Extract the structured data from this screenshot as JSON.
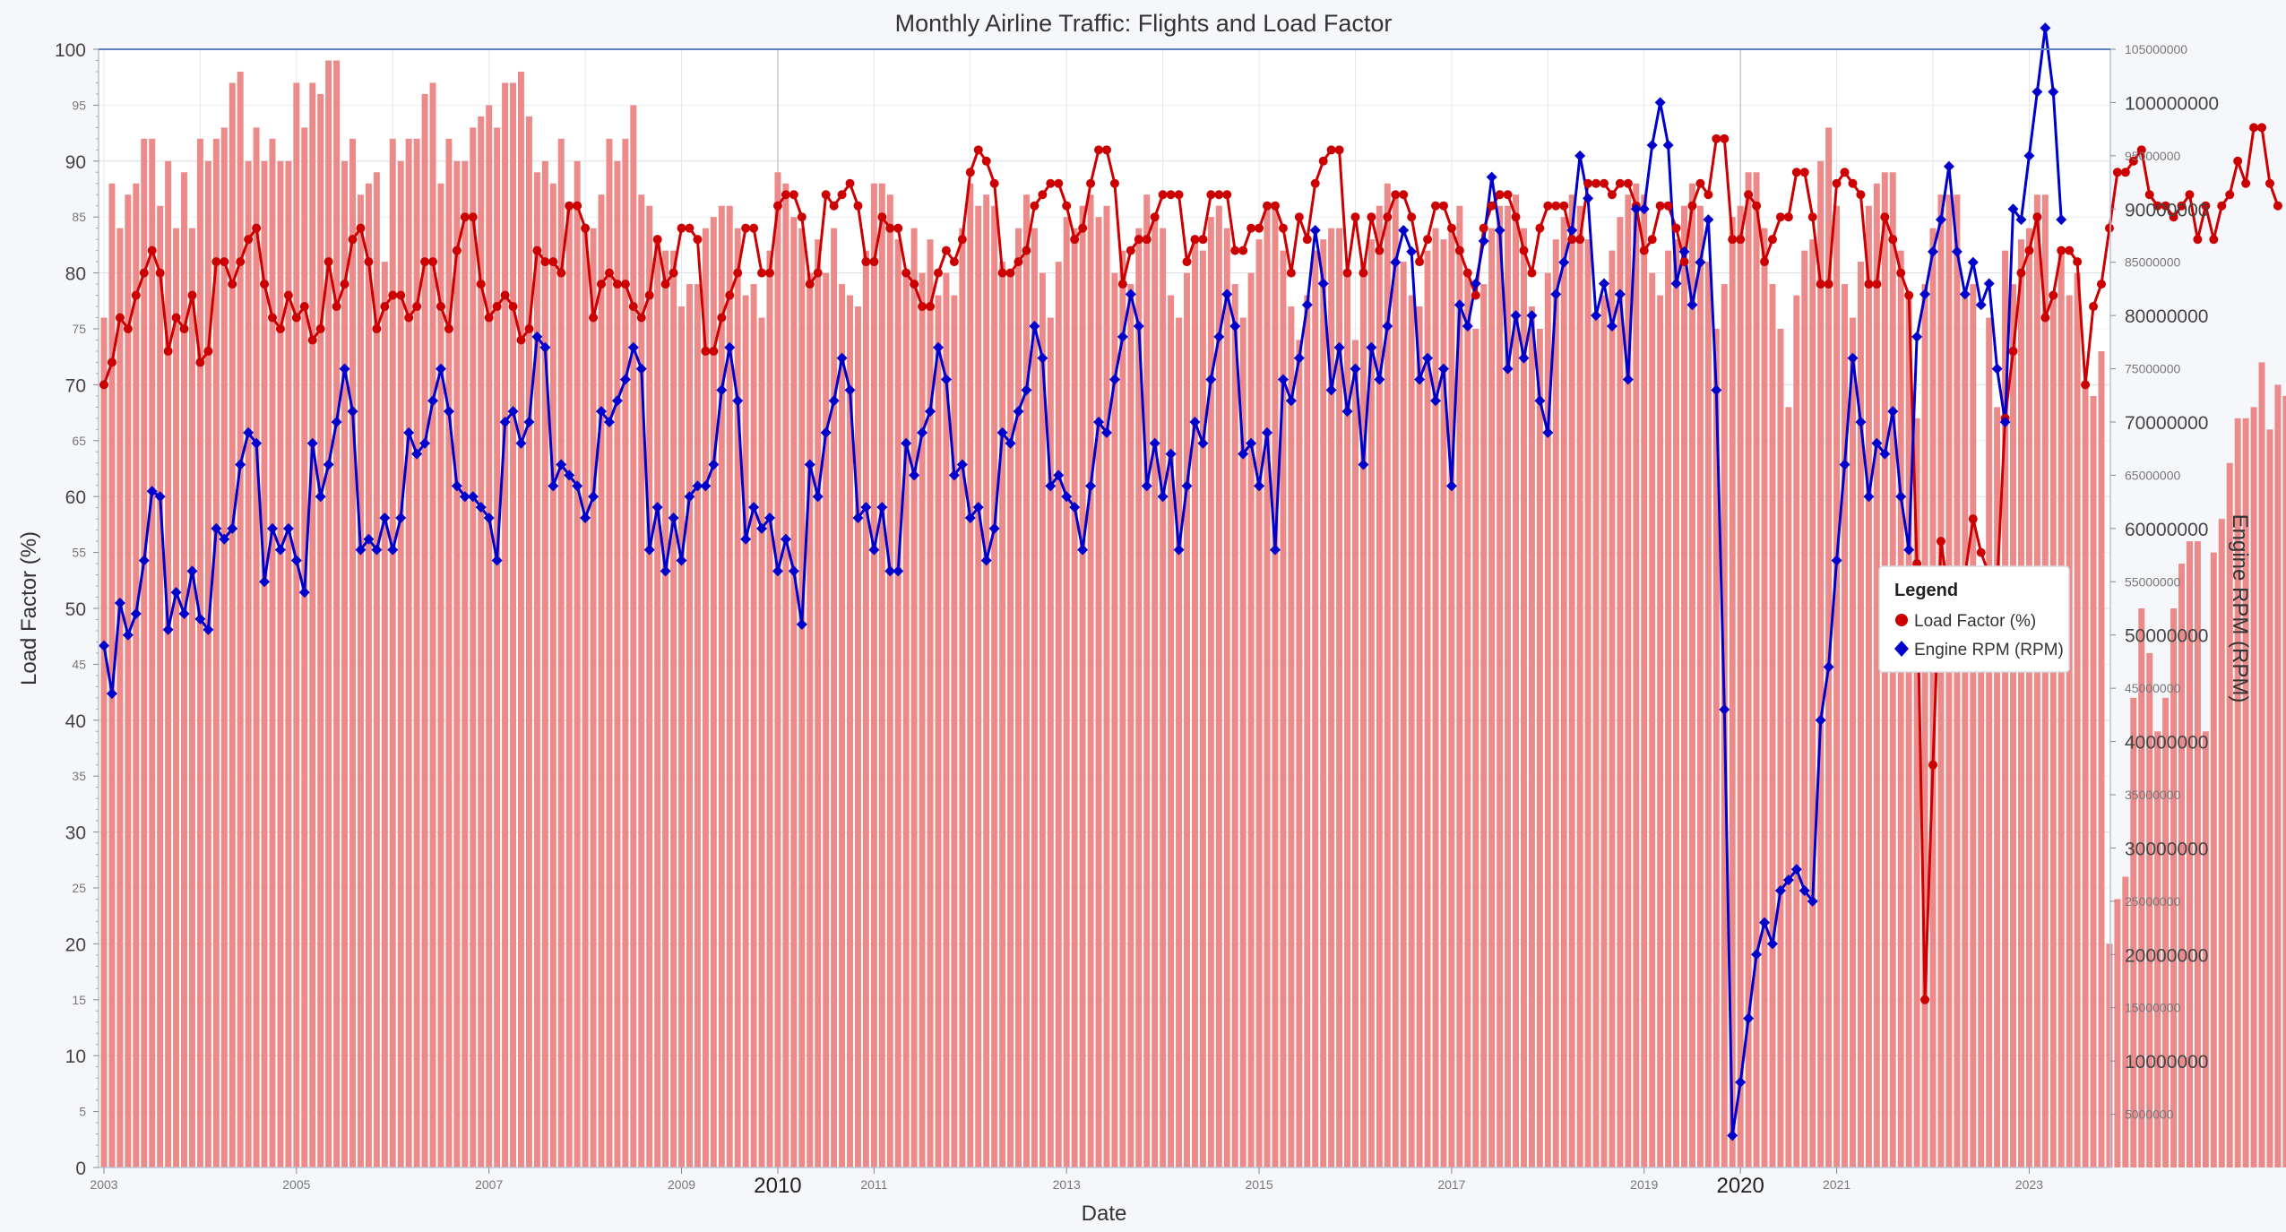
{
  "chart_data": {
    "type": "bar+line",
    "title": "Monthly Airline Traffic: Flights and Load Factor",
    "xlabel": "Date",
    "ylabel_left": "Load Factor (%)",
    "ylabel_right": "Engine RPM (RPM)",
    "ylim_left": [
      0,
      100
    ],
    "ylim_right": [
      0,
      105000000
    ],
    "left_ticks": [
      "0",
      "5",
      "10",
      "15",
      "20",
      "25",
      "30",
      "35",
      "40",
      "45",
      "50",
      "55",
      "60",
      "65",
      "70",
      "75",
      "80",
      "85",
      "90",
      "95",
      "100"
    ],
    "right_ticks": [
      {
        "value": 5000000,
        "label": "5000000",
        "major": false
      },
      {
        "value": 10000000,
        "label": "10000000",
        "major": true
      },
      {
        "value": 15000000,
        "label": "15000000",
        "major": false
      },
      {
        "value": 20000000,
        "label": "20000000",
        "major": true
      },
      {
        "value": 25000000,
        "label": "25000000",
        "major": false
      },
      {
        "value": 30000000,
        "label": "30000000",
        "major": true
      },
      {
        "value": 35000000,
        "label": "35000000",
        "major": false
      },
      {
        "value": 40000000,
        "label": "40000000",
        "major": true
      },
      {
        "value": 45000000,
        "label": "45000000",
        "major": false
      },
      {
        "value": 50000000,
        "label": "50000000",
        "major": true
      },
      {
        "value": 55000000,
        "label": "55000000",
        "major": false
      },
      {
        "value": 60000000,
        "label": "60000000",
        "major": true
      },
      {
        "value": 65000000,
        "label": "65000000",
        "major": false
      },
      {
        "value": 70000000,
        "label": "70000000",
        "major": true
      },
      {
        "value": 75000000,
        "label": "75000000",
        "major": false
      },
      {
        "value": 80000000,
        "label": "80000000",
        "major": true
      },
      {
        "value": 85000000,
        "label": "85000000",
        "major": false
      },
      {
        "value": 90000000,
        "label": "90000000",
        "major": true
      },
      {
        "value": 95000000,
        "label": "95000000",
        "major": false
      },
      {
        "value": 100000000,
        "label": "100000000",
        "major": true
      },
      {
        "value": 105000000,
        "label": "105000000",
        "major": false
      }
    ],
    "x_range": [
      "2003-01",
      "2023-10"
    ],
    "x_ticks": [
      {
        "year": 2003,
        "label": "2003",
        "style": "minor"
      },
      {
        "year": 2005,
        "label": "2005",
        "style": "minor"
      },
      {
        "year": 2007,
        "label": "2007",
        "style": "minor"
      },
      {
        "year": 2009,
        "label": "2009",
        "style": "minor"
      },
      {
        "year": 2010,
        "label": "2010",
        "style": "emph"
      },
      {
        "year": 2011,
        "label": "2011",
        "style": "minor"
      },
      {
        "year": 2013,
        "label": "2013",
        "style": "minor"
      },
      {
        "year": 2015,
        "label": "2015",
        "style": "minor"
      },
      {
        "year": 2017,
        "label": "2017",
        "style": "minor"
      },
      {
        "year": 2019,
        "label": "2019",
        "style": "minor"
      },
      {
        "year": 2020,
        "label": "2020",
        "style": "emph"
      },
      {
        "year": 2021,
        "label": "2021",
        "style": "minor"
      },
      {
        "year": 2023,
        "label": "2023",
        "style": "minor"
      }
    ],
    "series": [
      {
        "name": "Flights",
        "type": "bar",
        "axis": "left",
        "color": "#ec8a8a",
        "values": [
          76,
          88,
          84,
          87,
          88,
          92,
          92,
          86,
          90,
          84,
          89,
          84,
          92,
          90,
          92,
          93,
          97,
          98,
          90,
          93,
          90,
          92,
          90,
          90,
          97,
          93,
          97,
          96,
          99,
          99,
          90,
          92,
          87,
          88,
          89,
          81,
          92,
          90,
          92,
          92,
          96,
          97,
          88,
          92,
          90,
          90,
          93,
          94,
          95,
          93,
          97,
          97,
          98,
          94,
          89,
          90,
          88,
          92,
          86,
          90,
          84,
          84,
          87,
          92,
          90,
          92,
          95,
          87,
          86,
          83,
          82,
          82,
          77,
          79,
          79,
          84,
          85,
          86,
          86,
          84,
          78,
          79,
          76,
          82,
          89,
          88,
          85,
          84,
          80,
          83,
          80,
          84,
          79,
          78,
          77,
          82,
          88,
          88,
          87,
          83,
          80,
          84,
          80,
          83,
          78,
          80,
          78,
          84,
          88,
          86,
          87,
          86,
          81,
          80,
          84,
          87,
          84,
          80,
          76,
          81,
          85,
          84,
          86,
          87,
          85,
          86,
          80,
          82,
          79,
          84,
          87,
          85,
          84,
          78,
          76,
          80,
          83,
          82,
          85,
          86,
          84,
          79,
          76,
          80,
          83,
          86,
          86,
          82,
          77,
          74,
          78,
          82,
          83,
          84,
          84,
          80,
          74,
          81,
          83,
          86,
          88,
          87,
          81,
          78,
          77,
          82,
          84,
          83,
          84,
          86,
          80,
          75,
          79,
          84,
          86,
          86,
          87,
          84,
          77,
          75,
          80,
          83,
          85,
          87,
          86,
          83,
          76,
          78,
          82,
          85,
          87,
          88,
          87,
          80,
          78,
          82,
          83,
          86,
          88,
          86,
          81,
          75,
          79,
          85,
          86,
          89,
          89,
          84,
          79,
          75,
          68,
          78,
          82,
          83,
          90,
          93,
          86,
          79,
          76,
          81,
          86,
          88,
          89,
          89,
          82,
          78,
          67,
          79,
          84,
          87,
          87,
          87,
          78,
          79,
          52,
          76,
          68,
          82,
          79,
          83,
          84,
          87,
          87,
          78,
          82,
          78,
          80,
          70,
          69,
          73,
          20,
          24,
          26,
          42,
          50,
          46,
          39,
          42,
          50,
          54,
          56,
          56,
          39,
          55,
          58,
          63,
          67,
          67,
          68,
          72,
          66,
          70,
          69,
          67,
          67,
          63,
          59
        ]
      },
      {
        "name": "Load Factor (%)",
        "type": "line",
        "axis": "left",
        "color": "#cc0000",
        "marker": "circle",
        "values": [
          70,
          72,
          76,
          75,
          78,
          80,
          82,
          80,
          73,
          76,
          75,
          78,
          72,
          73,
          81,
          81,
          79,
          81,
          83,
          84,
          79,
          76,
          75,
          78,
          76,
          77,
          74,
          75,
          81,
          77,
          79,
          83,
          84,
          81,
          75,
          77,
          78,
          78,
          76,
          77,
          81,
          81,
          77,
          75,
          82,
          85,
          85,
          79,
          76,
          77,
          78,
          77,
          74,
          75,
          82,
          81,
          81,
          80,
          86,
          86,
          84,
          76,
          79,
          80,
          79,
          79,
          77,
          76,
          78,
          83,
          79,
          80,
          84,
          84,
          83,
          73,
          73,
          76,
          78,
          80,
          84,
          84,
          80,
          80,
          86,
          87,
          87,
          85,
          79,
          80,
          87,
          86,
          87,
          88,
          86,
          81,
          81,
          85,
          84,
          84,
          80,
          79,
          77,
          77,
          80,
          82,
          81,
          83,
          89,
          91,
          90,
          88,
          80,
          80,
          81,
          82,
          86,
          87,
          88,
          88,
          86,
          83,
          84,
          88,
          91,
          91,
          88,
          79,
          82,
          83,
          83,
          85,
          87,
          87,
          87,
          81,
          83,
          83,
          87,
          87,
          87,
          82,
          82,
          84,
          84,
          86,
          86,
          84,
          80,
          85,
          83,
          88,
          90,
          91,
          91,
          80,
          85,
          80,
          85,
          82,
          85,
          87,
          87,
          85,
          81,
          83,
          86,
          86,
          84,
          82,
          80,
          78,
          84,
          86,
          87,
          87,
          85,
          82,
          80,
          84,
          86,
          86,
          86,
          83,
          83,
          88,
          88,
          88,
          87,
          88,
          88,
          86,
          82,
          83,
          86,
          86,
          84,
          81,
          86,
          88,
          87,
          92,
          92,
          83,
          83,
          87,
          86,
          81,
          83,
          85,
          85,
          89,
          89,
          85,
          79,
          79,
          88,
          89,
          88,
          87,
          79,
          79,
          85,
          83,
          80,
          78,
          54,
          15,
          36,
          56,
          51,
          51,
          53,
          58,
          55,
          53,
          52,
          67,
          73,
          80,
          82,
          85,
          76,
          78,
          82,
          82,
          81,
          70,
          77,
          79,
          84,
          89,
          89,
          90,
          91,
          87,
          86,
          86,
          85,
          86,
          87,
          83,
          86,
          83,
          86,
          87,
          90,
          88,
          93,
          93,
          88,
          86
        ]
      },
      {
        "name": "Engine RPM (RPM)",
        "type": "line",
        "axis": "right",
        "color": "#0000cc",
        "marker": "diamond",
        "values": [
          49000000,
          44500000,
          53000000,
          50000000,
          52000000,
          57000000,
          63500000,
          63000000,
          50500000,
          54000000,
          52000000,
          56000000,
          51500000,
          50500000,
          60000000,
          59000000,
          60000000,
          66000000,
          69000000,
          68000000,
          55000000,
          60000000,
          58000000,
          60000000,
          57000000,
          54000000,
          68000000,
          63000000,
          66000000,
          70000000,
          75000000,
          71000000,
          58000000,
          59000000,
          58000000,
          61000000,
          58000000,
          61000000,
          69000000,
          67000000,
          68000000,
          72000000,
          75000000,
          71000000,
          64000000,
          63000000,
          63000000,
          62000000,
          61000000,
          57000000,
          70000000,
          71000000,
          68000000,
          70000000,
          78000000,
          77000000,
          64000000,
          66000000,
          65000000,
          64000000,
          61000000,
          63000000,
          71000000,
          70000000,
          72000000,
          74000000,
          77000000,
          75000000,
          58000000,
          62000000,
          56000000,
          61000000,
          57000000,
          63000000,
          64000000,
          64000000,
          66000000,
          73000000,
          77000000,
          72000000,
          59000000,
          62000000,
          60000000,
          61000000,
          56000000,
          59000000,
          56000000,
          51000000,
          66000000,
          63000000,
          69000000,
          72000000,
          76000000,
          73000000,
          61000000,
          62000000,
          58000000,
          62000000,
          56000000,
          56000000,
          68000000,
          65000000,
          69000000,
          71000000,
          77000000,
          74000000,
          65000000,
          66000000,
          61000000,
          62000000,
          57000000,
          60000000,
          69000000,
          68000000,
          71000000,
          73000000,
          79000000,
          76000000,
          64000000,
          65000000,
          63000000,
          62000000,
          58000000,
          64000000,
          70000000,
          69000000,
          74000000,
          78000000,
          82000000,
          79000000,
          64000000,
          68000000,
          63000000,
          67000000,
          58000000,
          64000000,
          70000000,
          68000000,
          74000000,
          78000000,
          82000000,
          79000000,
          67000000,
          68000000,
          64000000,
          69000000,
          58000000,
          74000000,
          72000000,
          76000000,
          81000000,
          88000000,
          83000000,
          73000000,
          77000000,
          71000000,
          75000000,
          66000000,
          77000000,
          74000000,
          79000000,
          85000000,
          88000000,
          86000000,
          74000000,
          76000000,
          72000000,
          75000000,
          64000000,
          81000000,
          79000000,
          83000000,
          87000000,
          93000000,
          88000000,
          75000000,
          80000000,
          76000000,
          80000000,
          72000000,
          69000000,
          82000000,
          85000000,
          88000000,
          95000000,
          91000000,
          80000000,
          83000000,
          79000000,
          82000000,
          74000000,
          90000000,
          90000000,
          96000000,
          100000000,
          96000000,
          83000000,
          86000000,
          81000000,
          85000000,
          89000000,
          73000000,
          43000000,
          3000000,
          8000000,
          14000000,
          20000000,
          23000000,
          21000000,
          26000000,
          27000000,
          28000000,
          26000000,
          25000000,
          42000000,
          47000000,
          57000000,
          66000000,
          76000000,
          70000000,
          63000000,
          68000000,
          67000000,
          71000000,
          63000000,
          58000000,
          78000000,
          82000000,
          86000000,
          89000000,
          94000000,
          86000000,
          82000000,
          85000000,
          81000000,
          83000000,
          75000000,
          70000000,
          90000000,
          89000000,
          95000000,
          101000000,
          107000000,
          101000000,
          89000000
        ]
      }
    ],
    "legend": {
      "title": "Legend",
      "placement": "right",
      "items": [
        {
          "label": "Load Factor (%)",
          "color": "#cc0000",
          "marker": "circle"
        },
        {
          "label": "Engine RPM (RPM)",
          "color": "#0000cc",
          "marker": "diamond"
        }
      ]
    },
    "grid": true
  }
}
